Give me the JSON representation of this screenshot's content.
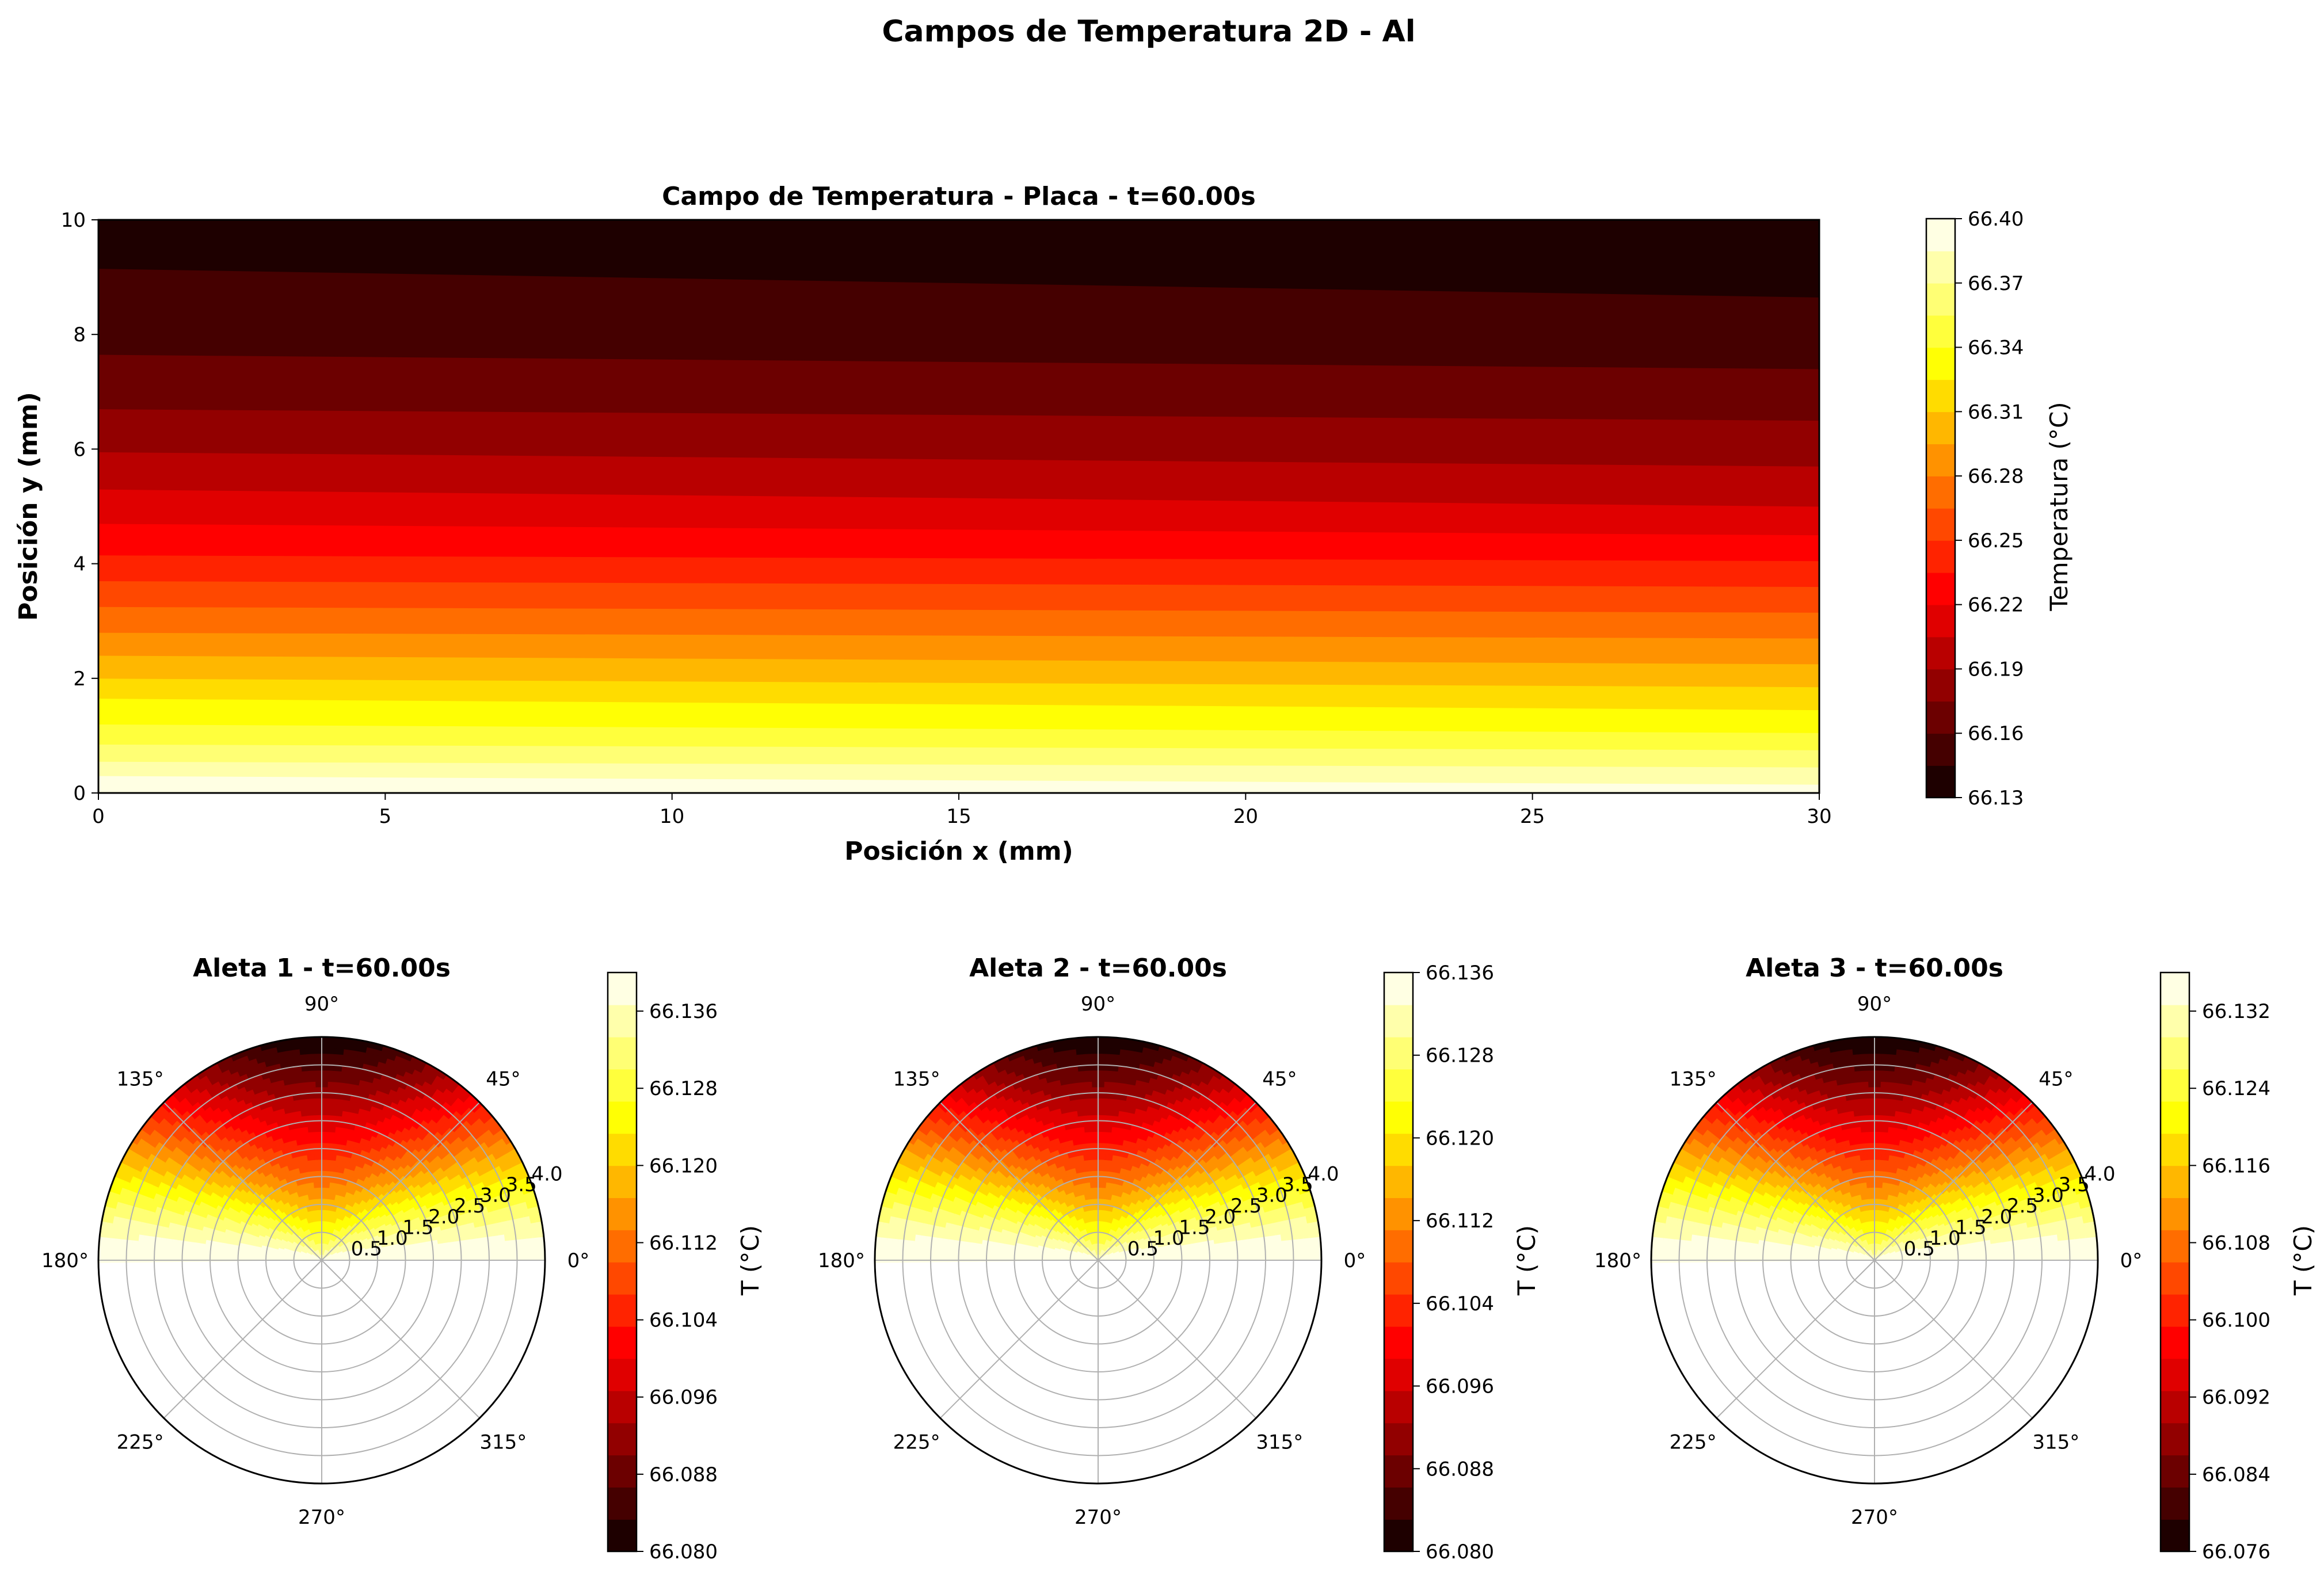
{
  "figure_title": "Campos de Temperatura 2D - Al",
  "chart_data": [
    {
      "type": "heatmap",
      "title": "Campo de Temperatura - Placa - t=60.00s",
      "xlabel": "Posición x (mm)",
      "ylabel": "Posición y (mm)",
      "xlim": [
        0,
        30
      ],
      "ylim": [
        0,
        10
      ],
      "xticks": [
        "0",
        "5",
        "10",
        "15",
        "20",
        "25",
        "30"
      ],
      "yticks": [
        "0",
        "2",
        "4",
        "6",
        "8",
        "10"
      ],
      "colormap": "hot",
      "colorbar": {
        "label": "Temperatura (°C)",
        "range": [
          66.13,
          66.4
        ],
        "ticks": [
          "66.13",
          "66.16",
          "66.19",
          "66.22",
          "66.25",
          "66.28",
          "66.31",
          "66.34",
          "66.37",
          "66.40"
        ]
      },
      "field": {
        "x": [
          0,
          30
        ],
        "y_level_boundaries_at_x0": [
          0.3,
          0.55,
          0.85,
          1.2,
          1.65,
          2.0,
          2.4,
          2.8,
          3.25,
          3.7,
          4.15,
          4.7,
          5.3,
          5.95,
          6.7,
          7.65,
          9.15
        ],
        "y_level_boundaries_at_x30": [
          0.15,
          0.45,
          0.75,
          1.05,
          1.45,
          1.85,
          2.25,
          2.7,
          3.15,
          3.6,
          4.05,
          4.5,
          5.0,
          5.7,
          6.5,
          7.4,
          8.65
        ]
      }
    },
    {
      "type": "heatmap",
      "projection": "polar",
      "title": "Aleta 1 - t=60.00s",
      "theta_ticks": [
        "0°",
        "45°",
        "90°",
        "135°",
        "180°",
        "225°",
        "270°",
        "315°"
      ],
      "r_ticks": [
        "0.5",
        "1.0",
        "1.5",
        "2.0",
        "2.5",
        "3.0",
        "3.5",
        "4.0"
      ],
      "r_max": 4.0,
      "theta_range_deg": [
        0,
        180
      ],
      "colormap": "hot",
      "colorbar": {
        "label": "T (°C)",
        "range": [
          66.08,
          66.14
        ],
        "ticks": [
          "66.080",
          "66.088",
          "66.096",
          "66.104",
          "66.112",
          "66.120",
          "66.128",
          "66.136"
        ]
      },
      "field": "temperature decreases from the edges (theta 0° and 180°) toward the top (theta 90°) and with increasing radius"
    },
    {
      "type": "heatmap",
      "projection": "polar",
      "title": "Aleta 2 - t=60.00s",
      "theta_ticks": [
        "0°",
        "45°",
        "90°",
        "135°",
        "180°",
        "225°",
        "270°",
        "315°"
      ],
      "r_ticks": [
        "0.5",
        "1.0",
        "1.5",
        "2.0",
        "2.5",
        "3.0",
        "3.5",
        "4.0"
      ],
      "r_max": 4.0,
      "theta_range_deg": [
        0,
        180
      ],
      "colormap": "hot",
      "colorbar": {
        "label": "T (°C)",
        "range": [
          66.08,
          66.136
        ],
        "ticks": [
          "66.080",
          "66.088",
          "66.096",
          "66.104",
          "66.112",
          "66.120",
          "66.128",
          "66.136"
        ]
      },
      "field": "temperature decreases from the edges (theta 0° and 180°) toward the top (theta 90°) and with increasing radius"
    },
    {
      "type": "heatmap",
      "projection": "polar",
      "title": "Aleta 3 - t=60.00s",
      "theta_ticks": [
        "0°",
        "45°",
        "90°",
        "135°",
        "180°",
        "225°",
        "270°",
        "315°"
      ],
      "r_ticks": [
        "0.5",
        "1.0",
        "1.5",
        "2.0",
        "2.5",
        "3.0",
        "3.5",
        "4.0"
      ],
      "r_max": 4.0,
      "theta_range_deg": [
        0,
        180
      ],
      "colormap": "hot",
      "colorbar": {
        "label": "T (°C)",
        "range": [
          66.076,
          66.136
        ],
        "ticks": [
          "66.076",
          "66.084",
          "66.092",
          "66.100",
          "66.108",
          "66.116",
          "66.124",
          "66.132"
        ]
      },
      "field": "temperature decreases from the edges (theta 0° and 180°) toward the top (theta 90°) and with increasing radius"
    }
  ]
}
